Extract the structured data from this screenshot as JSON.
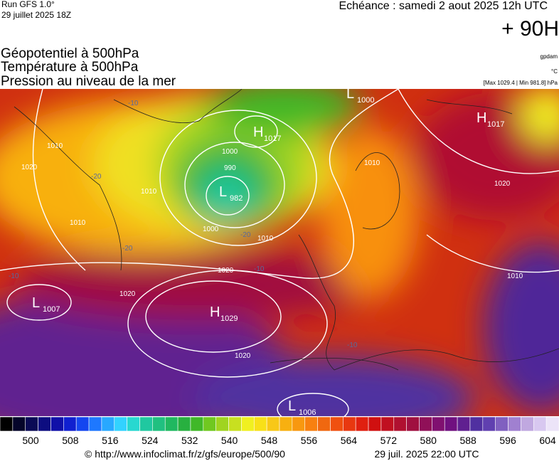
{
  "header": {
    "run": "Run GFS 1.0°",
    "date": "29 juillet 2025 18Z",
    "echeance": "Echéance : samedi 2 aout 2025 12h UTC",
    "lead": "+ 90H"
  },
  "titles": [
    "Géopotentiel à 500hPa",
    "Température à 500hPa",
    "Pression au niveau de la mer"
  ],
  "units": {
    "geopotential": "gpdam",
    "temperature": "°C",
    "pressure": "[Max 1029.4 | Min 981.8] hPa"
  },
  "pressure_centers": [
    {
      "letter": "L",
      "value": 1000
    },
    {
      "letter": "H",
      "value": 1017
    },
    {
      "letter": "L",
      "value": 982
    },
    {
      "letter": "H",
      "value": 1017
    },
    {
      "letter": "L",
      "value": 1007
    },
    {
      "letter": "H",
      "value": 1029
    },
    {
      "letter": "L",
      "value": 1006
    }
  ],
  "isobar_labels": [
    1010,
    1020,
    1010,
    1000,
    990,
    1000,
    1010,
    1020,
    1020,
    1020,
    1010,
    1020,
    1010,
    1010
  ],
  "temperature_labels": [
    -20,
    -20,
    -20,
    -10,
    -10,
    -10,
    -10
  ],
  "colorbar": {
    "colors": [
      "#000000",
      "#05052a",
      "#0a0a55",
      "#0d0d80",
      "#1010a8",
      "#1020d0",
      "#1446f0",
      "#1e78ff",
      "#28a8ff",
      "#32d2ff",
      "#28d8d0",
      "#20c8a0",
      "#20c080",
      "#20b860",
      "#28b040",
      "#40b828",
      "#70c820",
      "#a0d420",
      "#c8e020",
      "#f0f020",
      "#f8e018",
      "#f8c818",
      "#f8b010",
      "#f89810",
      "#f88010",
      "#f06810",
      "#f05010",
      "#e83810",
      "#e02010",
      "#d01010",
      "#c01020",
      "#b01030",
      "#a01040",
      "#901058",
      "#801070",
      "#701080",
      "#602090",
      "#5030a0",
      "#6040b0",
      "#8060c0",
      "#a080d0",
      "#c0a8e0",
      "#d8c8f0",
      "#ece4f8"
    ],
    "ticks": [
      500,
      508,
      516,
      524,
      532,
      540,
      548,
      556,
      564,
      572,
      580,
      588,
      596,
      604
    ]
  },
  "footer": {
    "url": "© http://www.infoclimat.fr/z/gfs/europe/500/90",
    "timestamp": "29 juil. 2025 22:00 UTC"
  }
}
